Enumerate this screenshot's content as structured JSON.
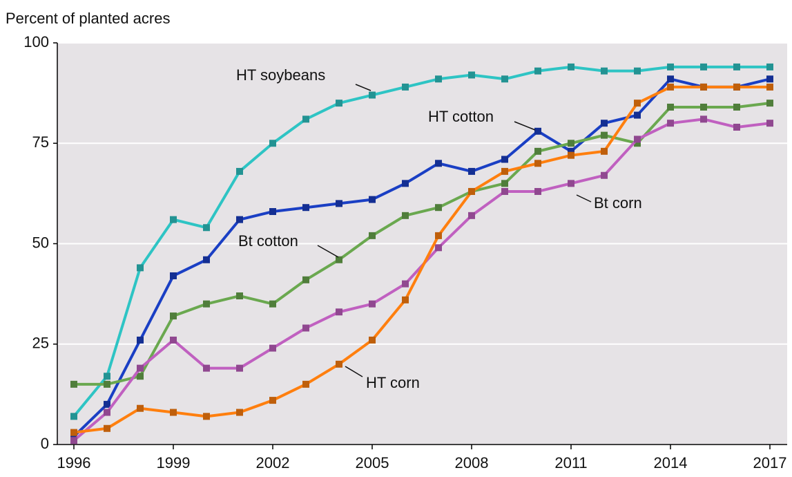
{
  "chart_data": {
    "type": "line",
    "y_label": "Percent of planted acres",
    "x": [
      1996,
      1997,
      1998,
      1999,
      2000,
      2001,
      2002,
      2003,
      2004,
      2005,
      2006,
      2007,
      2008,
      2009,
      2010,
      2011,
      2012,
      2013,
      2014,
      2015,
      2016,
      2017
    ],
    "xlim": [
      1996,
      2017
    ],
    "xticks": [
      1996,
      1999,
      2002,
      2005,
      2008,
      2011,
      2014,
      2017
    ],
    "ylim": [
      0,
      100
    ],
    "yticks": [
      0,
      25,
      50,
      75,
      100
    ],
    "grid": true,
    "series": [
      {
        "name": "HT soybeans",
        "color": "#2ec4c4",
        "values": [
          7,
          17,
          44,
          56,
          54,
          68,
          75,
          81,
          85,
          87,
          89,
          91,
          92,
          91,
          93,
          94,
          93,
          93,
          94,
          94,
          94,
          94
        ]
      },
      {
        "name": "HT cotton",
        "color": "#1a3fc4",
        "values": [
          2,
          10,
          26,
          42,
          46,
          56,
          58,
          59,
          60,
          61,
          65,
          70,
          68,
          71,
          78,
          73,
          80,
          82,
          91,
          89,
          89,
          91
        ]
      },
      {
        "name": "Bt cotton",
        "color": "#6aa84f",
        "values": [
          15,
          15,
          17,
          32,
          35,
          37,
          35,
          41,
          46,
          52,
          57,
          59,
          63,
          65,
          73,
          75,
          77,
          75,
          84,
          84,
          84,
          85
        ]
      },
      {
        "name": "Bt corn",
        "color": "#c060c0",
        "values": [
          1,
          8,
          19,
          26,
          19,
          19,
          24,
          29,
          33,
          35,
          40,
          49,
          57,
          63,
          63,
          65,
          67,
          76,
          80,
          81,
          79,
          80
        ]
      },
      {
        "name": "HT corn",
        "color": "#ff7f0e",
        "values": [
          3,
          4,
          9,
          8,
          7,
          8,
          11,
          15,
          20,
          26,
          36,
          52,
          63,
          68,
          70,
          72,
          73,
          85,
          89,
          89,
          89,
          89
        ]
      }
    ]
  }
}
